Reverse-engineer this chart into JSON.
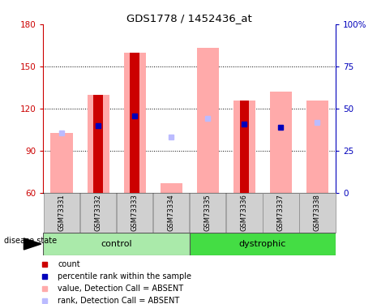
{
  "title": "GDS1778 / 1452436_at",
  "samples": [
    "GSM73331",
    "GSM73332",
    "GSM73333",
    "GSM73334",
    "GSM73335",
    "GSM73336",
    "GSM73337",
    "GSM73338"
  ],
  "ylim_left": [
    60,
    180
  ],
  "ylim_right": [
    0,
    100
  ],
  "yticks_left": [
    60,
    90,
    120,
    150,
    180
  ],
  "yticks_right": [
    0,
    25,
    50,
    75,
    100
  ],
  "ytick_labels_right": [
    "0",
    "25",
    "50",
    "75",
    "100%"
  ],
  "red_bars": [
    null,
    130,
    160,
    null,
    null,
    126,
    null,
    null
  ],
  "pink_bars": [
    103,
    130,
    160,
    67,
    163,
    126,
    132,
    126
  ],
  "blue_squares": [
    null,
    108,
    115,
    null,
    null,
    109,
    107,
    null
  ],
  "light_blue_squares": [
    103,
    null,
    null,
    100,
    113,
    null,
    null,
    110
  ],
  "red_color": "#cc0000",
  "pink_color": "#ffaaaa",
  "blue_color": "#0000bb",
  "light_blue_color": "#bbbbff",
  "axis_color_left": "#cc0000",
  "axis_color_right": "#0000bb",
  "control_color": "#aaeaaa",
  "dystrophic_color": "#44dd44",
  "gray_color": "#d0d0d0",
  "legend_items": [
    {
      "color": "#cc0000",
      "label": "count"
    },
    {
      "color": "#0000bb",
      "label": "percentile rank within the sample"
    },
    {
      "color": "#ffaaaa",
      "label": "value, Detection Call = ABSENT"
    },
    {
      "color": "#bbbbff",
      "label": "rank, Detection Call = ABSENT"
    }
  ]
}
